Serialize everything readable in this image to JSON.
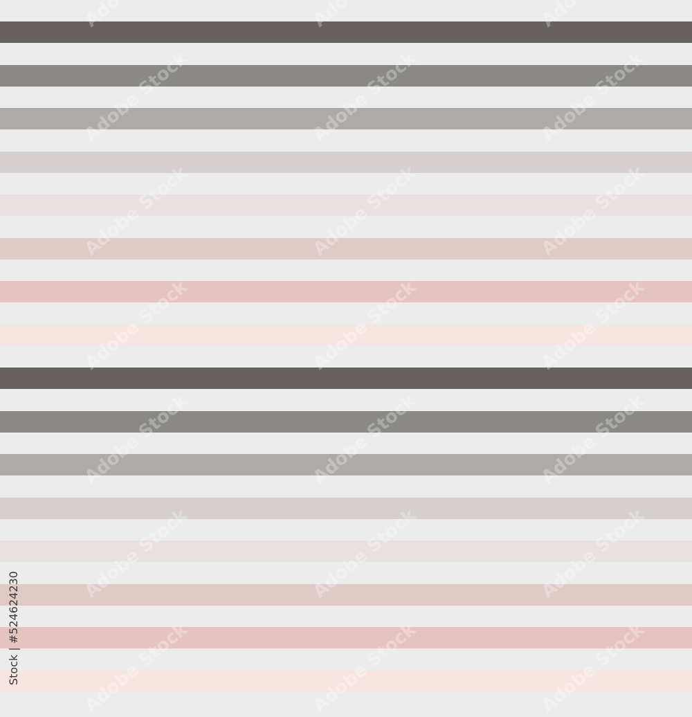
{
  "background_color": "#ececec",
  "stripe_colors": [
    "#67625f",
    "#8a8985",
    "#aeaaa7",
    "#d6cfcd",
    "#e9e1df",
    "#e0cac6",
    "#e5c4c0",
    "#f8e5e1"
  ],
  "pattern_repeats": 2,
  "watermark": {
    "text": "Adobe Stock",
    "side_id": "Stock | #524624230"
  }
}
